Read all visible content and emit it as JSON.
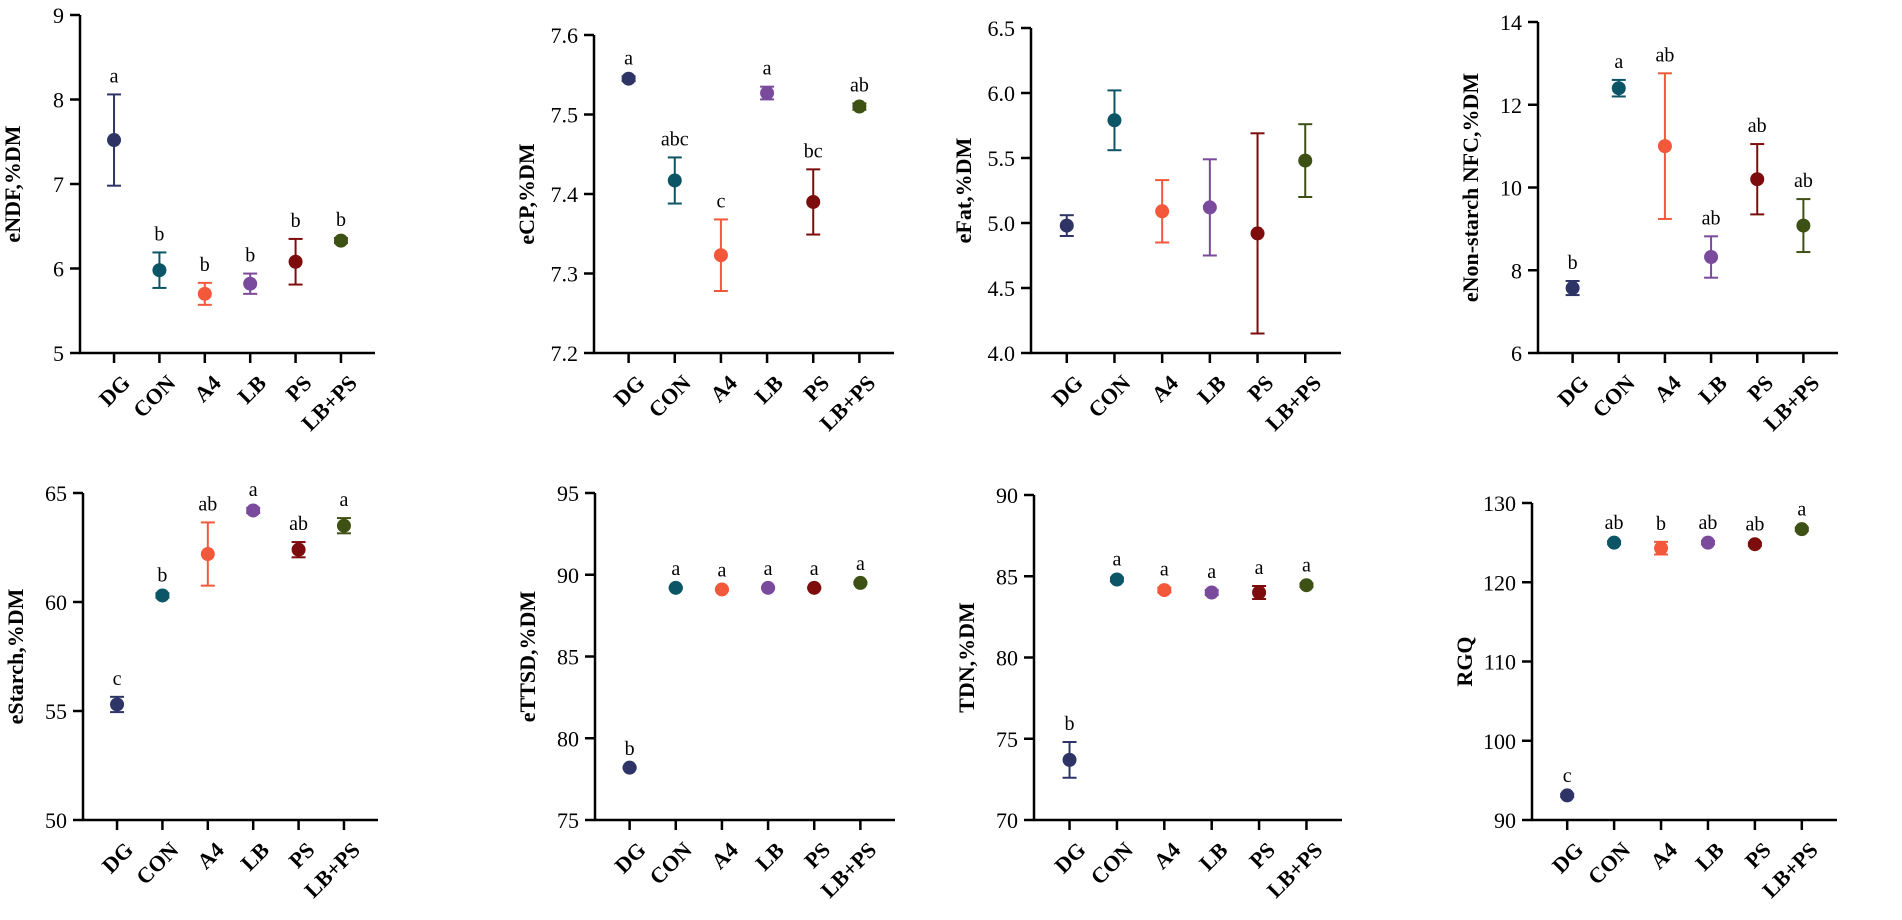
{
  "colors": {
    "DG": "#2e3566",
    "CON": "#0b5566",
    "A4": "#f4583b",
    "LB": "#7a4a9c",
    "PS": "#7d0c0c",
    "LB+PS": "#3e5114",
    "axis": "#000000"
  },
  "chart_data": [
    {
      "type": "scatter",
      "panel": "top-1",
      "title": "",
      "ylabel": "eNDF,%DM",
      "ylim": [
        5,
        9
      ],
      "yticks": [
        5,
        6,
        7,
        8,
        9
      ],
      "yticklabels": [
        "5",
        "6",
        "7",
        "8",
        "9"
      ],
      "categories": [
        "DG",
        "CON",
        "A4",
        "LB",
        "PS",
        "LB+PS"
      ],
      "values": [
        7.52,
        5.98,
        5.7,
        5.82,
        6.08,
        6.33
      ],
      "errors": [
        0.54,
        0.21,
        0.13,
        0.12,
        0.27,
        0.03
      ],
      "labels": [
        "a",
        "b",
        "b",
        "b",
        "b",
        "b"
      ]
    },
    {
      "type": "scatter",
      "panel": "top-2",
      "title": "",
      "ylabel": "eCP,%DM",
      "ylim": [
        7.2,
        7.6
      ],
      "yticks": [
        7.2,
        7.3,
        7.4,
        7.5,
        7.6
      ],
      "yticklabels": [
        "7.2",
        "7.3",
        "7.4",
        "7.5",
        "7.6"
      ],
      "categories": [
        "DG",
        "CON",
        "A4",
        "LB",
        "PS",
        "LB+PS"
      ],
      "values": [
        7.545,
        7.417,
        7.323,
        7.527,
        7.39,
        7.51
      ],
      "errors": [
        0.003,
        0.029,
        0.045,
        0.008,
        0.041,
        0.004
      ],
      "labels": [
        "a",
        "abc",
        "c",
        "a",
        "bc",
        "ab"
      ]
    },
    {
      "type": "scatter",
      "panel": "top-3",
      "title": "",
      "ylabel": "eFat,%DM",
      "ylim": [
        4.0,
        6.5
      ],
      "yticks": [
        4.0,
        4.5,
        5.0,
        5.5,
        6.0,
        6.5
      ],
      "yticklabels": [
        "4.0",
        "4.5",
        "5.0",
        "5.5",
        "6.0",
        "6.5"
      ],
      "categories": [
        "DG",
        "CON",
        "A4",
        "LB",
        "PS",
        "LB+PS"
      ],
      "values": [
        4.98,
        5.79,
        5.09,
        5.12,
        4.92,
        5.48
      ],
      "errors": [
        0.08,
        0.23,
        0.24,
        0.37,
        0.77,
        0.28
      ],
      "labels": [
        "",
        "",
        "",
        "",
        "",
        ""
      ]
    },
    {
      "type": "scatter",
      "panel": "top-4",
      "title": "",
      "ylabel": "eNon-starch NFC,%DM",
      "ylim": [
        6,
        14
      ],
      "yticks": [
        6,
        8,
        10,
        12,
        14
      ],
      "yticklabels": [
        "6",
        "8",
        "10",
        "12",
        "14"
      ],
      "categories": [
        "DG",
        "CON",
        "A4",
        "LB",
        "PS",
        "LB+PS"
      ],
      "values": [
        7.57,
        12.4,
        11.0,
        8.32,
        10.2,
        9.08
      ],
      "errors": [
        0.17,
        0.2,
        1.76,
        0.5,
        0.85,
        0.64
      ],
      "labels": [
        "b",
        "a",
        "ab",
        "ab",
        "ab",
        "ab"
      ]
    },
    {
      "type": "scatter",
      "panel": "bottom-1",
      "title": "",
      "ylabel": "eStarch,%DM",
      "ylim": [
        50,
        65
      ],
      "yticks": [
        50,
        55,
        60,
        65
      ],
      "yticklabels": [
        "50",
        "55",
        "60",
        "65"
      ],
      "categories": [
        "DG",
        "CON",
        "A4",
        "LB",
        "PS",
        "LB+PS"
      ],
      "values": [
        55.3,
        60.3,
        62.2,
        64.2,
        62.4,
        63.5
      ],
      "errors": [
        0.35,
        0.1,
        1.45,
        0.12,
        0.35,
        0.35
      ],
      "labels": [
        "c",
        "b",
        "ab",
        "a",
        "ab",
        "a"
      ]
    },
    {
      "type": "scatter",
      "panel": "bottom-2",
      "title": "",
      "ylabel": "eTTSD,%DM",
      "ylim": [
        75,
        95
      ],
      "yticks": [
        75,
        80,
        85,
        90,
        95
      ],
      "yticklabels": [
        "75",
        "80",
        "85",
        "90",
        "95"
      ],
      "categories": [
        "DG",
        "CON",
        "A4",
        "LB",
        "PS",
        "LB+PS"
      ],
      "values": [
        78.2,
        89.2,
        89.1,
        89.2,
        89.2,
        89.5
      ],
      "errors": [
        0.05,
        0.05,
        0.05,
        0.05,
        0.05,
        0.05
      ],
      "labels": [
        "b",
        "a",
        "a",
        "a",
        "a",
        "a"
      ]
    },
    {
      "type": "scatter",
      "panel": "bottom-3",
      "title": "",
      "ylabel": "TDN,%DM",
      "ylim": [
        70,
        90
      ],
      "yticks": [
        70,
        75,
        80,
        85,
        90
      ],
      "yticklabels": [
        "70",
        "75",
        "80",
        "85",
        "90"
      ],
      "categories": [
        "DG",
        "CON",
        "A4",
        "LB",
        "PS",
        "LB+PS"
      ],
      "values": [
        73.7,
        84.8,
        84.15,
        84.0,
        84.0,
        84.45
      ],
      "errors": [
        1.1,
        0.12,
        0.15,
        0.15,
        0.4,
        0.1
      ],
      "labels": [
        "b",
        "a",
        "a",
        "a",
        "a",
        "a"
      ]
    },
    {
      "type": "scatter",
      "panel": "bottom-4",
      "title": "",
      "ylabel": "RGQ",
      "ylim": [
        90,
        130
      ],
      "yticks": [
        90,
        100,
        110,
        120,
        130
      ],
      "yticklabels": [
        "90",
        "100",
        "110",
        "120",
        "130"
      ],
      "categories": [
        "DG",
        "CON",
        "A4",
        "LB",
        "PS",
        "LB+PS"
      ],
      "values": [
        93.1,
        125.0,
        124.3,
        125.0,
        124.8,
        126.7
      ],
      "errors": [
        0.2,
        0.2,
        0.8,
        0.2,
        0.2,
        0.2
      ],
      "labels": [
        "c",
        "ab",
        "b",
        "ab",
        "ab",
        "a"
      ]
    }
  ]
}
